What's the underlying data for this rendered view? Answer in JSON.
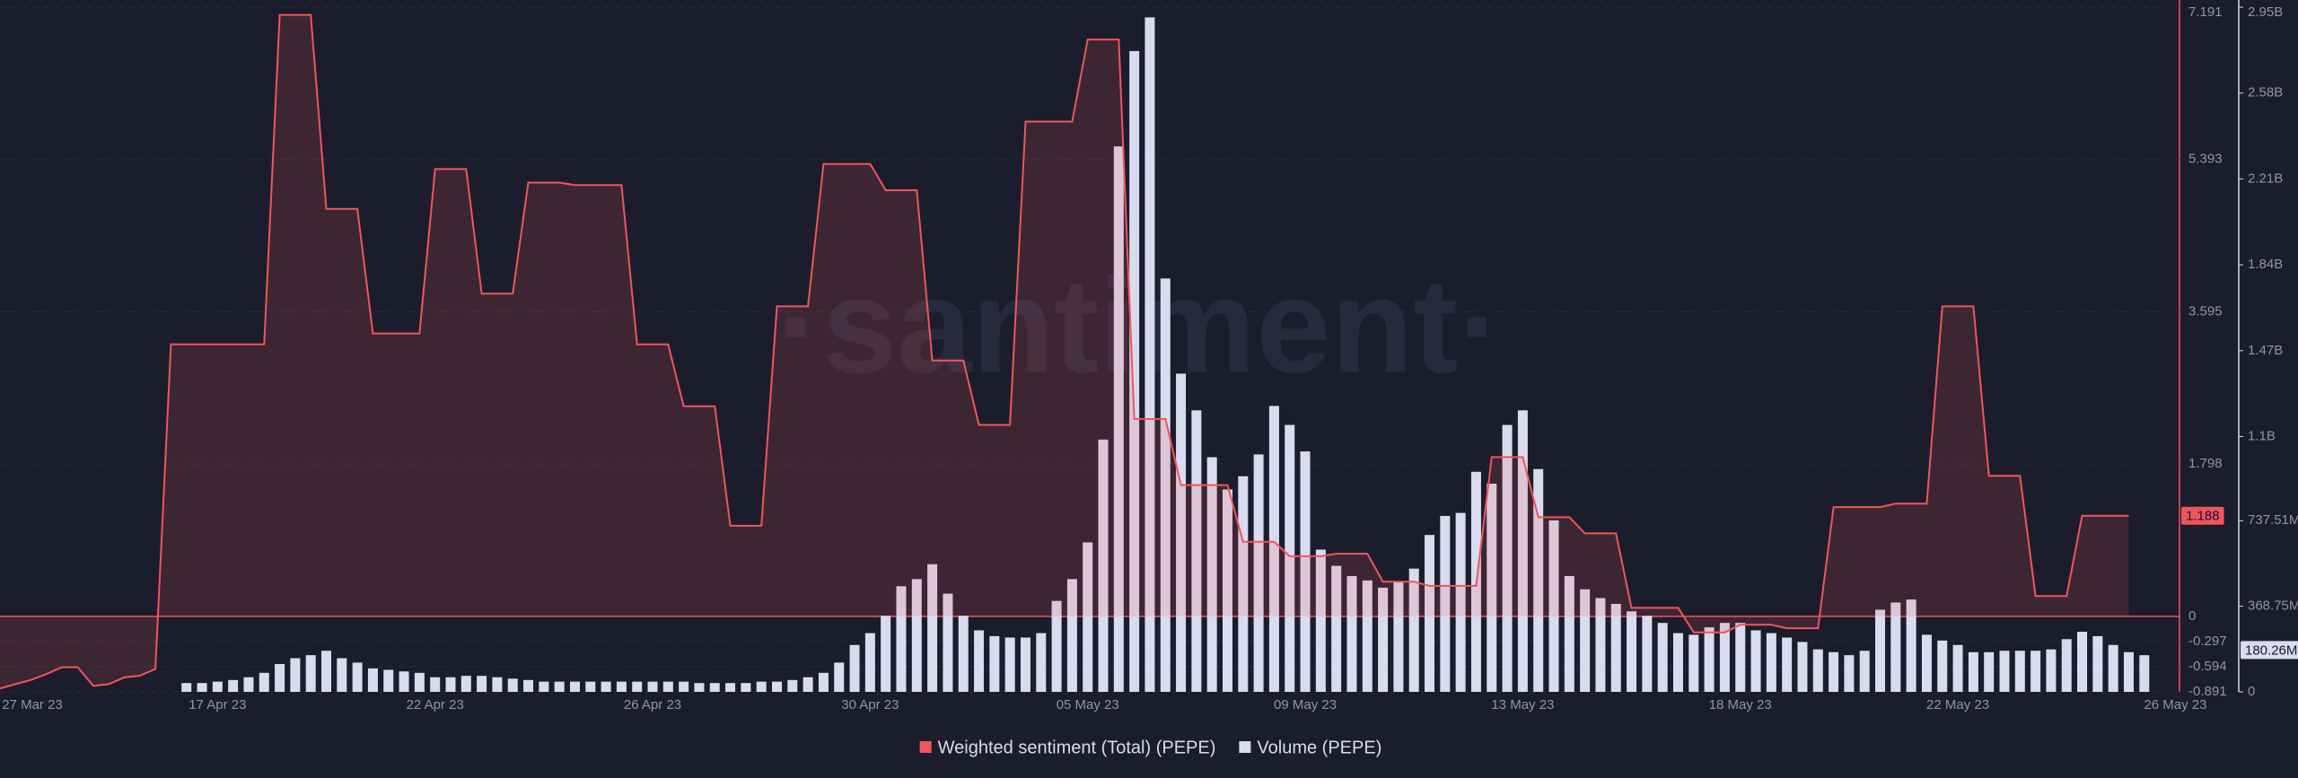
{
  "chart_data": {
    "type": "line_bar",
    "watermark": "·santiment·",
    "categories": [
      null,
      null,
      "27 Mar 23",
      null,
      null,
      null,
      null,
      null,
      null,
      null,
      null,
      null,
      null,
      null,
      "17 Apr 23",
      null,
      null,
      null,
      null,
      null,
      null,
      null,
      null,
      null,
      null,
      null,
      null,
      null,
      "22 Apr 23",
      null,
      null,
      null,
      null,
      null,
      null,
      null,
      null,
      null,
      null,
      null,
      null,
      null,
      "26 Apr 23",
      null,
      null,
      null,
      null,
      null,
      null,
      null,
      null,
      null,
      null,
      null,
      null,
      null,
      "30 Apr 23",
      null,
      null,
      null,
      null,
      null,
      null,
      null,
      null,
      null,
      null,
      null,
      null,
      null,
      "05 May 23",
      null,
      null,
      null,
      null,
      null,
      null,
      null,
      null,
      null,
      null,
      null,
      null,
      null,
      "09 May 23",
      null,
      null,
      null,
      null,
      null,
      null,
      null,
      null,
      null,
      null,
      null,
      null,
      null,
      "13 May 23",
      null,
      null,
      null,
      null,
      null,
      null,
      null,
      null,
      null,
      null,
      null,
      null,
      null,
      "18 May 23",
      null,
      null,
      null,
      null,
      null,
      null,
      null,
      null,
      null,
      null,
      null,
      null,
      null,
      "22 May 23",
      null,
      null,
      null,
      null,
      null,
      null,
      null,
      null,
      null,
      null,
      null,
      null,
      null,
      "26 May 23"
    ],
    "series": [
      {
        "name": "Weighted sentiment (Total) (PEPE)",
        "color": "#f0555c",
        "kind": "line",
        "axis": "y",
        "last_label": 1.188,
        "values": [
          -0.85,
          -0.8,
          -0.75,
          -0.68,
          -0.6,
          -0.6,
          -0.82,
          -0.8,
          -0.72,
          -0.7,
          -0.62,
          3.21,
          3.21,
          3.21,
          3.21,
          3.21,
          3.21,
          3.21,
          7.1,
          7.1,
          7.1,
          4.81,
          4.81,
          4.81,
          3.34,
          3.34,
          3.34,
          3.34,
          5.28,
          5.28,
          5.28,
          3.81,
          3.81,
          3.81,
          5.12,
          5.12,
          5.12,
          5.09,
          5.09,
          5.09,
          5.09,
          3.21,
          3.21,
          3.21,
          2.48,
          2.48,
          2.48,
          1.07,
          1.07,
          1.07,
          3.66,
          3.66,
          3.66,
          5.34,
          5.34,
          5.34,
          5.34,
          5.03,
          5.03,
          5.03,
          3.02,
          3.02,
          3.02,
          2.26,
          2.26,
          2.26,
          5.84,
          5.84,
          5.84,
          5.84,
          6.81,
          6.81,
          6.81,
          2.33,
          2.33,
          2.33,
          1.55,
          1.55,
          1.55,
          1.55,
          0.88,
          0.88,
          0.88,
          0.71,
          0.71,
          0.71,
          0.74,
          0.74,
          0.74,
          0.41,
          0.41,
          0.41,
          0.36,
          0.36,
          0.36,
          0.36,
          1.88,
          1.88,
          1.88,
          1.17,
          1.17,
          1.17,
          0.98,
          0.98,
          0.98,
          0.1,
          0.1,
          0.1,
          0.1,
          -0.19,
          -0.19,
          -0.19,
          -0.1,
          -0.1,
          -0.1,
          -0.14,
          -0.14,
          -0.14,
          1.29,
          1.29,
          1.29,
          1.29,
          1.33,
          1.33,
          1.33,
          3.66,
          3.66,
          3.66,
          1.66,
          1.66,
          1.66,
          0.24,
          0.24,
          0.24,
          1.188,
          1.188,
          1.188,
          1.188,
          null,
          null,
          null
        ]
      },
      {
        "name": "Volume (PEPE)",
        "color": "#d9dcef",
        "kind": "bar",
        "axis": "y2",
        "last_label": {
          "value": 180260000,
          "label": "180.26M"
        },
        "values": [
          null,
          null,
          null,
          null,
          null,
          null,
          null,
          null,
          null,
          null,
          null,
          null,
          38000000,
          38000000,
          44000000,
          51000000,
          63000000,
          82000000,
          120000000,
          145000000,
          158000000,
          177000000,
          145000000,
          126000000,
          101000000,
          95000000,
          88000000,
          82000000,
          63000000,
          63000000,
          69000000,
          69000000,
          63000000,
          57000000,
          51000000,
          44000000,
          44000000,
          44000000,
          44000000,
          44000000,
          44000000,
          44000000,
          44000000,
          44000000,
          44000000,
          38000000,
          38000000,
          38000000,
          38000000,
          44000000,
          44000000,
          51000000,
          63000000,
          82000000,
          126000000,
          202000000,
          253000000,
          328000000,
          455000000,
          486000000,
          550000000,
          423000000,
          328000000,
          265000000,
          240000000,
          234000000,
          234000000,
          253000000,
          392000000,
          486000000,
          644000000,
          1087000000,
          2350000000,
          2761000000,
          2906000000,
          1781000000,
          1371000000,
          1213000000,
          1011000000,
          872000000,
          929000000,
          1023000000,
          1232000000,
          1150000000,
          1036000000,
          613000000,
          543000000,
          499000000,
          480000000,
          449000000,
          474000000,
          531000000,
          676000000,
          758000000,
          771000000,
          948000000,
          897000000,
          1150000000,
          1213000000,
          960000000,
          739000000,
          499000000,
          442000000,
          404000000,
          379000000,
          347000000,
          328000000,
          297000000,
          253000000,
          246000000,
          278000000,
          297000000,
          297000000,
          265000000,
          253000000,
          234000000,
          215000000,
          183000000,
          171000000,
          158000000,
          177000000,
          354000000,
          385000000,
          398000000,
          246000000,
          221000000,
          202000000,
          171000000,
          171000000,
          177000000,
          177000000,
          177000000,
          183000000,
          227000000,
          259000000,
          240000000,
          202000000,
          171000000,
          158000000,
          null,
          null
        ]
      }
    ],
    "ylim": [
      -0.891,
      7.191
    ],
    "yticks": [
      -0.891,
      -0.594,
      -0.297,
      0,
      1.798,
      3.595,
      5.393,
      7.191
    ],
    "y2lim": [
      0,
      2950000000
    ],
    "y2ticks": [
      0,
      {
        "value": 368750000,
        "label": "368.75M"
      },
      {
        "value": 737510000,
        "label": "737.51M"
      },
      {
        "value": 1100000000,
        "label": "1.1B"
      },
      {
        "value": 1470000000,
        "label": "1.47B"
      },
      {
        "value": 1840000000,
        "label": "1.84B"
      },
      {
        "value": 2210000000,
        "label": "2.21B"
      },
      {
        "value": 2580000000,
        "label": "2.58B"
      },
      {
        "value": 2950000000,
        "label": "2.95B"
      }
    ],
    "grid": true
  }
}
